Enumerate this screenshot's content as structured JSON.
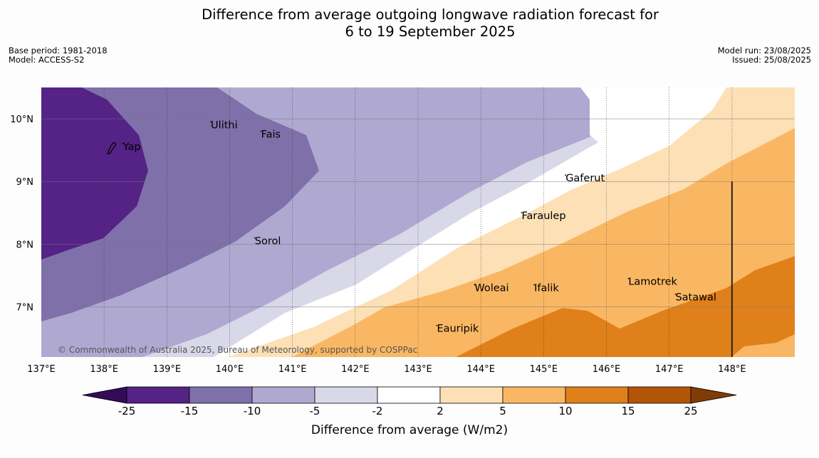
{
  "title": {
    "line1": "Difference from average outgoing longwave radiation forecast for",
    "line2": "6 to 19 September 2025"
  },
  "meta_left": {
    "base_period": "Base period: 1981-2018",
    "model": "Model: ACCESS-S2"
  },
  "meta_right": {
    "model_run": "Model run: 23/08/2025",
    "issued": "Issued: 25/08/2025"
  },
  "map": {
    "lon_ticks": [
      "137°E",
      "138°E",
      "139°E",
      "140°E",
      "141°E",
      "142°E",
      "143°E",
      "144°E",
      "145°E",
      "146°E",
      "147°E",
      "148°E"
    ],
    "lat_ticks": [
      "10°N",
      "9°N",
      "8°N",
      "7°N"
    ],
    "places": [
      {
        "name": "Yap",
        "lon": 138.3,
        "lat": 9.5
      },
      {
        "name": "Ulithi",
        "lon": 139.7,
        "lat": 9.85
      },
      {
        "name": "Fais",
        "lon": 140.5,
        "lat": 9.7
      },
      {
        "name": "Sorol",
        "lon": 140.4,
        "lat": 8.0
      },
      {
        "name": "Gaferut",
        "lon": 145.35,
        "lat": 9.0
      },
      {
        "name": "Faraulep",
        "lon": 144.65,
        "lat": 8.4
      },
      {
        "name": "Woleai",
        "lon": 143.9,
        "lat": 7.25
      },
      {
        "name": "Ifalik",
        "lon": 144.85,
        "lat": 7.25
      },
      {
        "name": "Lamotrek",
        "lon": 146.35,
        "lat": 7.35
      },
      {
        "name": "Satawal",
        "lon": 147.1,
        "lat": 7.1
      },
      {
        "name": "Eauripik",
        "lon": 143.3,
        "lat": 6.6
      }
    ],
    "credit": "© Commonwealth of Australia 2025, Bureau of Meteorology, supported by COSPPac"
  },
  "colorbar": {
    "labels": [
      "-25",
      "-15",
      "-10",
      "-5",
      "-2",
      "2",
      "5",
      "10",
      "15",
      "25"
    ],
    "colors": [
      "#552286",
      "#7f70aa",
      "#afa9d1",
      "#d8d8e9",
      "#ffffff",
      "#fde0b6",
      "#fab763",
      "#e0801a",
      "#b25507"
    ],
    "extend_low": "#320c57",
    "extend_high": "#7f3b08",
    "title": "Difference from average (W/m2)"
  }
}
